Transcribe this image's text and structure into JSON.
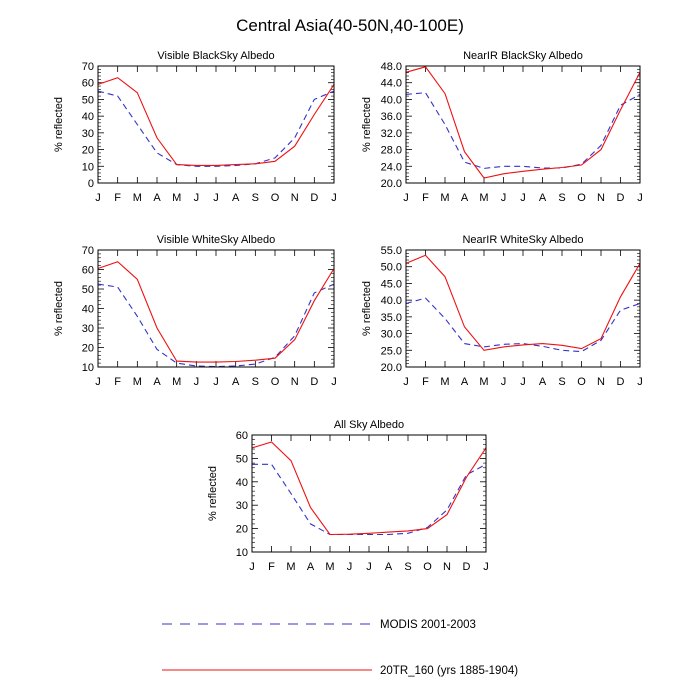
{
  "figure_title": "Central Asia(40-50N,40-100E)",
  "legend": {
    "modis": {
      "label": "MODIS 2001-2003",
      "color": "#3333cc",
      "dash": "dashed"
    },
    "model": {
      "label": "20TR_160 (yrs 1885-1904)",
      "color": "#ee1111",
      "dash": "solid"
    }
  },
  "chart_data": [
    {
      "type": "line",
      "title": "Visible BlackSky Albedo",
      "ylabel": "% reflected",
      "categories": [
        "J",
        "F",
        "M",
        "A",
        "M",
        "J",
        "J",
        "A",
        "S",
        "O",
        "N",
        "D",
        "J"
      ],
      "ylim": [
        0,
        70
      ],
      "yticks": [
        "0",
        "10",
        "20",
        "30",
        "40",
        "50",
        "60",
        "70"
      ],
      "series": [
        {
          "name": "MODIS 2001-2003",
          "values": [
            55,
            52,
            35,
            18,
            11,
            10,
            10,
            10.5,
            11.5,
            15,
            27,
            50,
            55
          ]
        },
        {
          "name": "20TR_160 (yrs 1885-1904)",
          "values": [
            59,
            63,
            54,
            27,
            11,
            10.5,
            10.5,
            11,
            11.5,
            13,
            22,
            41,
            59
          ]
        }
      ]
    },
    {
      "type": "line",
      "title": "NearIR BlackSky Albedo",
      "ylabel": "% reflected",
      "categories": [
        "J",
        "F",
        "M",
        "A",
        "M",
        "J",
        "J",
        "A",
        "S",
        "O",
        "N",
        "D",
        "J"
      ],
      "ylim": [
        20,
        48
      ],
      "yticks": [
        "20.0",
        "24.0",
        "28.0",
        "32.0",
        "36.0",
        "40.0",
        "44.0",
        "48.0"
      ],
      "series": [
        {
          "name": "MODIS 2001-2003",
          "values": [
            41.2,
            41.6,
            34,
            25,
            23.5,
            24,
            24,
            23.6,
            23.6,
            24.5,
            29,
            38.6,
            41.2
          ]
        },
        {
          "name": "20TR_160 (yrs 1885-1904)",
          "values": [
            46.5,
            47.8,
            41.4,
            27.5,
            21.2,
            22.2,
            22.8,
            23.3,
            23.7,
            24.3,
            28,
            37.5,
            46.5
          ]
        }
      ]
    },
    {
      "type": "line",
      "title": "Visible WhiteSky Albedo",
      "ylabel": "% reflected",
      "categories": [
        "J",
        "F",
        "M",
        "A",
        "M",
        "J",
        "J",
        "A",
        "S",
        "O",
        "N",
        "D",
        "J"
      ],
      "ylim": [
        10,
        70
      ],
      "yticks": [
        "10",
        "20",
        "30",
        "40",
        "50",
        "60",
        "70"
      ],
      "series": [
        {
          "name": "MODIS 2001-2003",
          "values": [
            52.5,
            51,
            36,
            19,
            12,
            10.5,
            10.2,
            10.5,
            11.5,
            15,
            26,
            48,
            52.5
          ]
        },
        {
          "name": "20TR_160 (yrs 1885-1904)",
          "values": [
            60.5,
            64,
            55,
            30,
            13,
            12.5,
            12.5,
            12.8,
            13.5,
            14.5,
            24,
            44,
            60.5
          ]
        }
      ]
    },
    {
      "type": "line",
      "title": "NearIR WhiteSky Albedo",
      "ylabel": "% reflected",
      "categories": [
        "J",
        "F",
        "M",
        "A",
        "M",
        "J",
        "J",
        "A",
        "S",
        "O",
        "N",
        "D",
        "J"
      ],
      "ylim": [
        20,
        55
      ],
      "yticks": [
        "20.0",
        "25.0",
        "30.0",
        "35.0",
        "40.0",
        "45.0",
        "50.0",
        "55.0"
      ],
      "series": [
        {
          "name": "MODIS 2001-2003",
          "values": [
            39,
            40.6,
            34.5,
            27,
            26,
            26.8,
            27,
            26.2,
            25,
            24.6,
            28,
            37,
            39
          ]
        },
        {
          "name": "20TR_160 (yrs 1885-1904)",
          "values": [
            51,
            53.4,
            47,
            32,
            25,
            26,
            26.6,
            27,
            26.5,
            25.5,
            28.5,
            41,
            51
          ]
        }
      ]
    },
    {
      "type": "line",
      "title": "All Sky Albedo",
      "ylabel": "% reflected",
      "categories": [
        "J",
        "F",
        "M",
        "A",
        "M",
        "J",
        "J",
        "A",
        "S",
        "O",
        "N",
        "D",
        "J"
      ],
      "ylim": [
        10,
        60
      ],
      "yticks": [
        "10",
        "20",
        "30",
        "40",
        "50",
        "60"
      ],
      "series": [
        {
          "name": "MODIS 2001-2003",
          "values": [
            47.5,
            47.5,
            35,
            22,
            17.5,
            17.5,
            17.5,
            17.5,
            18,
            20.5,
            28,
            43,
            47.5
          ]
        },
        {
          "name": "20TR_160 (yrs 1885-1904)",
          "values": [
            54.5,
            57,
            49,
            29,
            17.5,
            17.6,
            18,
            18.5,
            19,
            20,
            26,
            42,
            54.5
          ]
        }
      ]
    }
  ]
}
